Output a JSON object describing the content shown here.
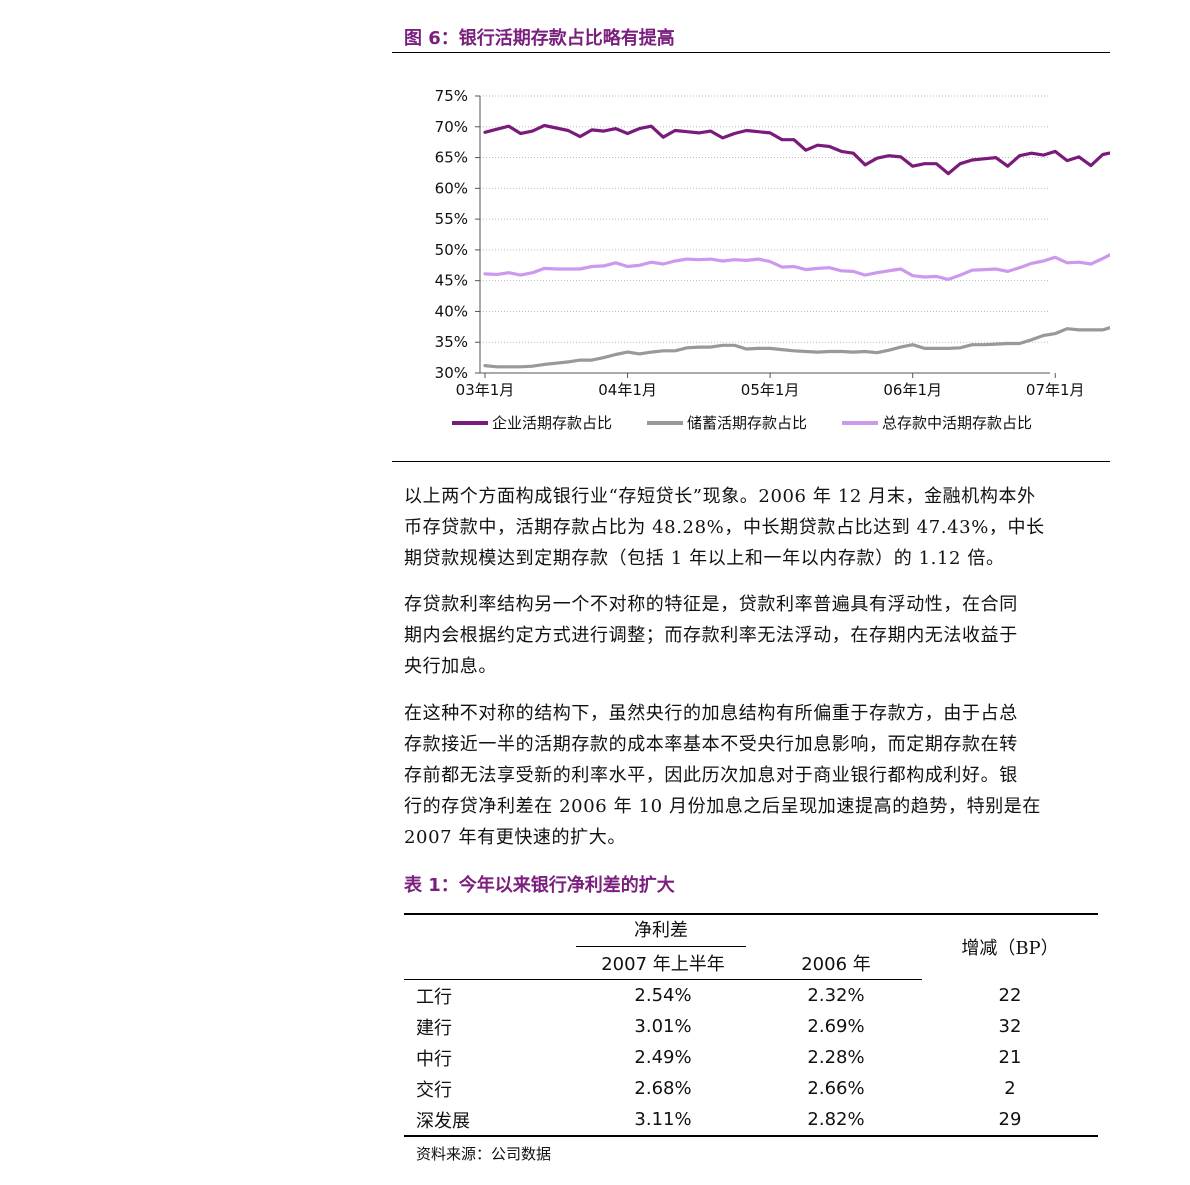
{
  "figure": {
    "title": "图 6：银行活期存款占比略有提高"
  },
  "chart_data": {
    "type": "line",
    "title": "",
    "xlabel": "",
    "ylabel": "",
    "ylim": [
      30,
      75
    ],
    "y_ticks": [
      "75%",
      "70%",
      "65%",
      "60%",
      "55%",
      "50%",
      "45%",
      "40%",
      "35%",
      "30%"
    ],
    "x_ticks": [
      "03年1月",
      "04年1月",
      "05年1月",
      "06年1月",
      "07年1月"
    ],
    "x_start": "2003-01",
    "legend_position": "bottom",
    "series": [
      {
        "name": "企业活期存款占比",
        "color": "#7a1a7a",
        "values": [
          69.1,
          69.6,
          70.1,
          68.9,
          69.3,
          70.2,
          69.8,
          69.4,
          68.4,
          69.5,
          69.3,
          69.7,
          68.9,
          69.7,
          70.1,
          68.3,
          69.4,
          69.2,
          69.0,
          69.3,
          68.2,
          68.9,
          69.4,
          69.2,
          69.0,
          67.9,
          67.9,
          66.2,
          67.0,
          66.8,
          66.0,
          65.7,
          63.8,
          64.9,
          65.3,
          65.1,
          63.6,
          64.0,
          64.0,
          62.4,
          64.0,
          64.6,
          64.8,
          65.0,
          63.6,
          65.3,
          65.7,
          65.4,
          66.0,
          64.5,
          65.1,
          63.7,
          65.5,
          65.9,
          66.0,
          66.0,
          63.5
        ]
      },
      {
        "name": "储蓄活期存款占比",
        "color": "#999999",
        "values": [
          31.2,
          31.0,
          31.0,
          31.0,
          31.1,
          31.4,
          31.6,
          31.8,
          32.1,
          32.1,
          32.5,
          33.0,
          33.4,
          33.1,
          33.4,
          33.6,
          33.6,
          34.1,
          34.2,
          34.2,
          34.5,
          34.5,
          33.9,
          34.0,
          34.0,
          33.8,
          33.6,
          33.5,
          33.4,
          33.5,
          33.5,
          33.4,
          33.5,
          33.3,
          33.7,
          34.2,
          34.6,
          34.0,
          34.0,
          34.0,
          34.1,
          34.6,
          34.6,
          34.7,
          34.8,
          34.8,
          35.4,
          36.1,
          36.4,
          37.2,
          37.0,
          37.0,
          37.0,
          37.6,
          37.8,
          38.3,
          38.1
        ]
      },
      {
        "name": "总存款中活期存款占比",
        "color": "#cc99ee",
        "values": [
          46.1,
          46.0,
          46.3,
          45.9,
          46.3,
          47.0,
          46.9,
          46.9,
          46.9,
          47.3,
          47.4,
          47.9,
          47.3,
          47.5,
          48.0,
          47.7,
          48.2,
          48.5,
          48.4,
          48.5,
          48.2,
          48.4,
          48.3,
          48.5,
          48.1,
          47.2,
          47.3,
          46.8,
          47.0,
          47.1,
          46.6,
          46.5,
          45.9,
          46.3,
          46.6,
          46.9,
          45.8,
          45.6,
          45.7,
          45.2,
          45.9,
          46.7,
          46.8,
          46.9,
          46.5,
          47.1,
          47.8,
          48.2,
          48.8,
          47.9,
          48.0,
          47.7,
          48.6,
          49.6,
          49.9,
          50.5,
          49.4
        ]
      }
    ]
  },
  "paragraphs": [
    {
      "lines": [
        "以上两个方面构成银行业“存短贷长”现象。2006 年 12 月末，金融机构本外",
        "币存贷款中，活期存款占比为 48.28%，中长期贷款占比达到 47.43%，中长",
        "期贷款规模达到定期存款（包括 1 年以上和一年以内存款）的 1.12 倍。"
      ]
    },
    {
      "lines": [
        "存贷款利率结构另一个不对称的特征是，贷款利率普遍具有浮动性，在合同",
        "期内会根据约定方式进行调整；而存款利率无法浮动，在存期内无法收益于",
        "央行加息。"
      ]
    },
    {
      "lines": [
        "在这种不对称的结构下，虽然央行的加息结构有所偏重于存款方，由于占总",
        "存款接近一半的活期存款的成本率基本不受央行加息影响，而定期存款在转",
        "存前都无法享受新的利率水平，因此历次加息对于商业银行都构成利好。银",
        "行的存贷净利差在 2006 年 10 月份加息之后呈现加速提高的趋势，特别是在",
        "2007 年有更快速的扩大。"
      ]
    }
  ],
  "table": {
    "title": "表 1：今年以来银行净利差的扩大",
    "group_header": "净利差",
    "col_2007": "2007 年上半年",
    "col_2006": "2006 年",
    "col_change": "增减（BP）",
    "rows": [
      {
        "bank": "工行",
        "h2007": "2.54%",
        "y2006": "2.32%",
        "bp": "22"
      },
      {
        "bank": "建行",
        "h2007": "3.01%",
        "y2006": "2.69%",
        "bp": "32"
      },
      {
        "bank": "中行",
        "h2007": "2.49%",
        "y2006": "2.28%",
        "bp": "21"
      },
      {
        "bank": "交行",
        "h2007": "2.68%",
        "y2006": "2.66%",
        "bp": "2"
      },
      {
        "bank": "深发展",
        "h2007": "3.11%",
        "y2006": "2.82%",
        "bp": "29"
      }
    ],
    "source": "资料来源：公司数据"
  }
}
